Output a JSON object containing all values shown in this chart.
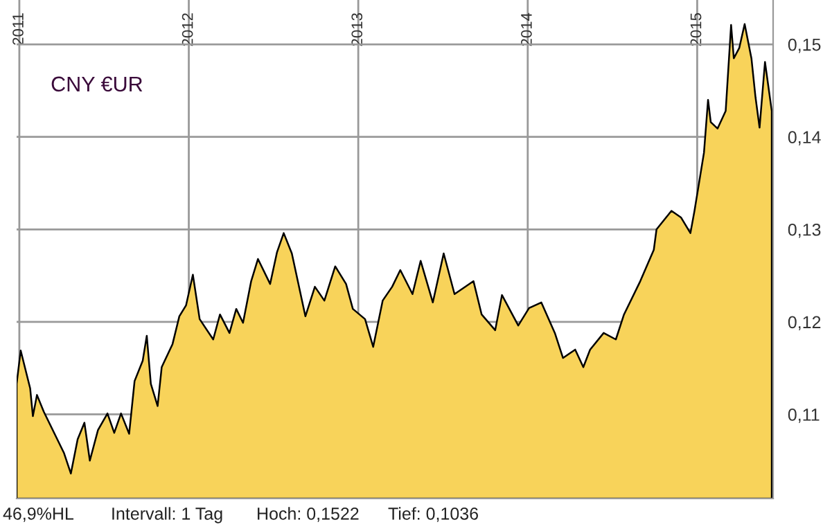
{
  "chart_data": {
    "type": "area",
    "title": "CNY €UR",
    "x": [
      2010.984,
      2011.008,
      2011.064,
      2011.08,
      2011.104,
      2011.144,
      2011.208,
      2011.264,
      2011.304,
      2011.344,
      2011.384,
      2011.416,
      2011.464,
      2011.52,
      2011.56,
      2011.6,
      2011.648,
      2011.68,
      2011.728,
      2011.752,
      2011.776,
      2011.816,
      2011.84,
      2011.904,
      2011.944,
      2011.984,
      2012.024,
      2012.064,
      2012.144,
      2012.184,
      2012.24,
      2012.28,
      2012.32,
      2012.368,
      2012.408,
      2012.48,
      2012.52,
      2012.56,
      2012.608,
      2012.688,
      2012.744,
      2012.8,
      2012.864,
      2012.928,
      2012.968,
      2013.04,
      2013.088,
      2013.144,
      2013.2,
      2013.248,
      2013.32,
      2013.368,
      2013.44,
      2013.504,
      2013.568,
      2013.68,
      2013.728,
      2013.808,
      2013.848,
      2013.944,
      2014.008,
      2014.08,
      2014.16,
      2014.208,
      2014.28,
      2014.328,
      2014.368,
      2014.448,
      2014.52,
      2014.568,
      2014.664,
      2014.744,
      2014.76,
      2014.848,
      2014.904,
      2014.96,
      2014.984,
      2015.04,
      2015.064,
      2015.08,
      2015.12,
      2015.168,
      2015.2,
      2015.216,
      2015.248,
      2015.28,
      2015.32,
      2015.344,
      2015.368,
      2015.4,
      2015.44
    ],
    "series": [
      {
        "color": "#f8d35a",
        "values": [
          0.1133,
          0.1169,
          0.1128,
          0.1098,
          0.1121,
          0.1103,
          0.1079,
          0.1058,
          0.1036,
          0.1073,
          0.1091,
          0.105,
          0.1083,
          0.1101,
          0.108,
          0.1101,
          0.1079,
          0.1136,
          0.1158,
          0.1185,
          0.1133,
          0.1109,
          0.1151,
          0.1176,
          0.1206,
          0.1218,
          0.1251,
          0.1203,
          0.1181,
          0.1208,
          0.1188,
          0.1214,
          0.1199,
          0.1244,
          0.1268,
          0.1241,
          0.1275,
          0.1296,
          0.1274,
          0.1206,
          0.1238,
          0.1223,
          0.126,
          0.1241,
          0.1214,
          0.1203,
          0.1173,
          0.1223,
          0.1238,
          0.1256,
          0.123,
          0.1266,
          0.1221,
          0.1274,
          0.123,
          0.1244,
          0.1208,
          0.1191,
          0.1229,
          0.1196,
          0.1215,
          0.1221,
          0.1188,
          0.1161,
          0.117,
          0.1151,
          0.117,
          0.1188,
          0.1181,
          0.1208,
          0.1244,
          0.1278,
          0.13,
          0.132,
          0.1313,
          0.1296,
          0.132,
          0.1383,
          0.144,
          0.1416,
          0.1409,
          0.1428,
          0.1521,
          0.1485,
          0.1496,
          0.1522,
          0.1485,
          0.1443,
          0.141,
          0.1481,
          0.1428
        ]
      }
    ],
    "xlim": [
      2010.984,
      2015.448
    ],
    "xticks": [
      2011,
      2012,
      2013,
      2014,
      2015
    ],
    "ylim": [
      0.1009,
      0.1548
    ],
    "yticks": [
      {
        "value": 0.11,
        "label": "0,11"
      },
      {
        "value": 0.12,
        "label": "0,12"
      },
      {
        "value": 0.13,
        "label": "0,13"
      },
      {
        "value": 0.14,
        "label": "0,14"
      },
      {
        "value": 0.15,
        "label": "0,15"
      }
    ],
    "grid": true,
    "annotations": [
      "46,9%HL",
      "Intervall: 1 Tag",
      "Hoch: 0,1522",
      "Tief: 0,1036"
    ]
  }
}
